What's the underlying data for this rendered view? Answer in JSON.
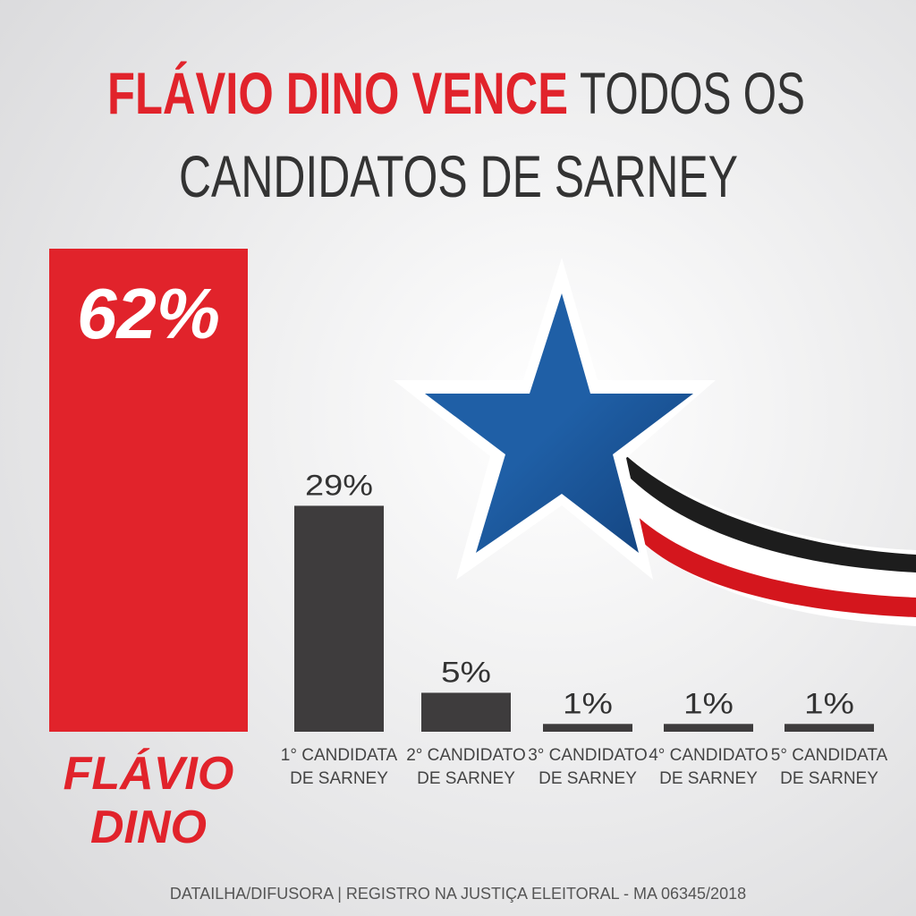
{
  "chart_data": {
    "type": "bar",
    "title": [
      "FLÁVIO DINO VENCE",
      "TODOS OS",
      "CANDIDATOS DE SARNEY"
    ],
    "categories": [
      [
        "FLÁVIO",
        "DINO"
      ],
      [
        "1° CANDIDATA",
        "DE SARNEY"
      ],
      [
        "2° CANDIDATO",
        "DE SARNEY"
      ],
      [
        "3° CANDIDATO",
        "DE SARNEY"
      ],
      [
        "4° CANDIDATO",
        "DE SARNEY"
      ],
      [
        "5° CANDIDATA",
        "DE SARNEY"
      ]
    ],
    "values": [
      62,
      29,
      5,
      1,
      1,
      1
    ],
    "value_labels": [
      "62%",
      "29%",
      "5%",
      "1%",
      "1%",
      "1%"
    ],
    "colors": [
      "#e1232b",
      "#3e3c3d",
      "#3e3c3d",
      "#3e3c3d",
      "#3e3c3d",
      "#3e3c3d"
    ],
    "source": "DATAILHA/DIFUSORA | REGISTRO NA JUSTIÇA ELEITORAL - MA 06345/2018"
  }
}
